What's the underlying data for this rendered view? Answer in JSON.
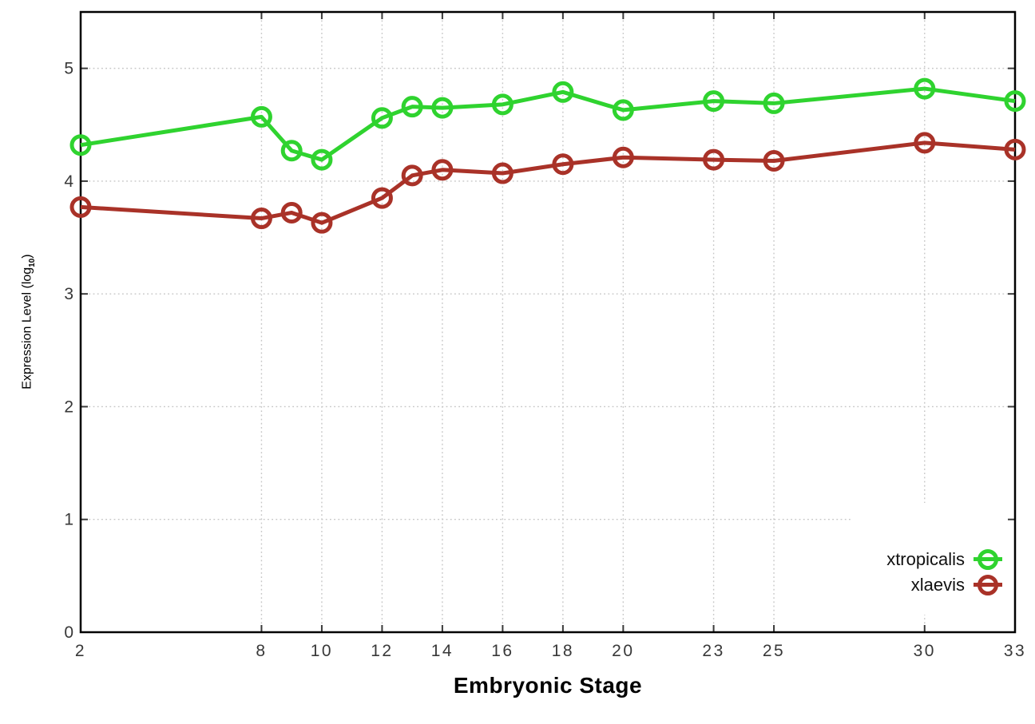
{
  "figure": {
    "background": "#ffffff",
    "border_color": "#000000",
    "grid_color": "#c6c6c6",
    "tick_color": "#3a3a3a",
    "tick_label_color": "#383838"
  },
  "axes": {
    "xlabel": "Embryonic Stage",
    "ylabel_prefix": "Expression Level (log",
    "ylabel_sub": "10",
    "ylabel_suffix": ")"
  },
  "legend": {
    "items": [
      {
        "label": "xtropicalis"
      },
      {
        "label": "xlaevis"
      }
    ]
  },
  "chart_data": {
    "type": "line",
    "title": "",
    "xlabel": "Embryonic Stage",
    "ylabel": "Expression Level (log10)",
    "x": [
      2,
      8,
      9,
      10,
      12,
      13,
      14,
      16,
      18,
      20,
      23,
      25,
      30,
      33
    ],
    "x_ticks": [
      2,
      8,
      10,
      12,
      14,
      16,
      18,
      20,
      23,
      25,
      30,
      33
    ],
    "y_ticks": [
      0,
      1,
      2,
      3,
      4,
      5
    ],
    "xlim": [
      2,
      33
    ],
    "ylim": [
      0,
      5.5
    ],
    "grid": true,
    "marker": "open-circle",
    "legend_position": "inside-bottom-right",
    "series": [
      {
        "name": "xtropicalis",
        "color": "#2fd32f",
        "values": [
          4.32,
          4.57,
          4.27,
          4.19,
          4.56,
          4.66,
          4.65,
          4.68,
          4.79,
          4.63,
          4.71,
          4.69,
          4.82,
          4.71
        ]
      },
      {
        "name": "xlaevis",
        "color": "#a93228",
        "values": [
          3.77,
          3.67,
          3.72,
          3.63,
          3.85,
          4.05,
          4.1,
          4.07,
          4.15,
          4.21,
          4.19,
          4.18,
          4.34,
          4.28
        ]
      }
    ]
  }
}
